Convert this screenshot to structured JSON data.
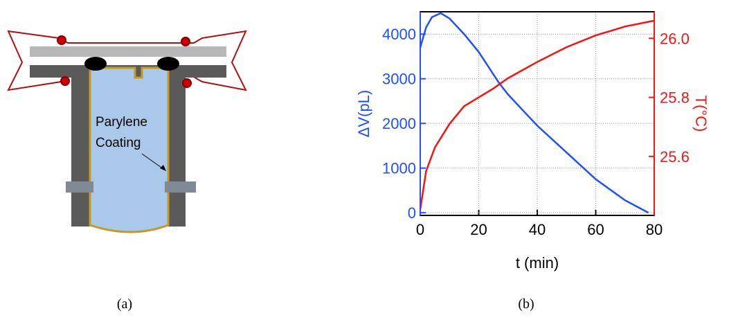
{
  "diagram": {
    "label_lines": [
      "Parylene",
      "Coating"
    ],
    "caption": "(a)"
  },
  "chart_data": {
    "type": "line",
    "caption": "(b)",
    "x_label": "t (min)",
    "y_label": "ΔV(pL)",
    "y2_label": "T(°C)",
    "xlim": [
      0,
      80
    ],
    "xticks": [
      0,
      20,
      40,
      60,
      80
    ],
    "ylim": [
      -60,
      4500
    ],
    "yticks": [
      0,
      1000,
      2000,
      3000,
      4000
    ],
    "y2lim": [
      25.4,
      26.09
    ],
    "y2ticks": [
      25.6,
      25.8,
      {
        "value": 26,
        "label": "26.0"
      }
    ],
    "grid": true,
    "series": [
      {
        "name": "ΔV",
        "color": "#1f4fff",
        "axis": "y",
        "x": [
          0,
          2,
          4,
          7,
          10,
          15,
          20,
          27,
          30,
          40,
          50,
          60,
          70,
          78
        ],
        "values": [
          3700,
          4150,
          4380,
          4470,
          4350,
          4000,
          3600,
          2900,
          2650,
          1950,
          1350,
          750,
          280,
          0
        ]
      },
      {
        "name": "T",
        "color": "#ff1010",
        "axis": "y2",
        "x": [
          0,
          2,
          5,
          10,
          15,
          20,
          25,
          30,
          40,
          50,
          60,
          70,
          80
        ],
        "values": [
          25.42,
          25.55,
          25.63,
          25.71,
          25.77,
          25.8,
          25.83,
          25.865,
          25.92,
          25.97,
          26.01,
          26.04,
          26.06
        ]
      }
    ]
  }
}
